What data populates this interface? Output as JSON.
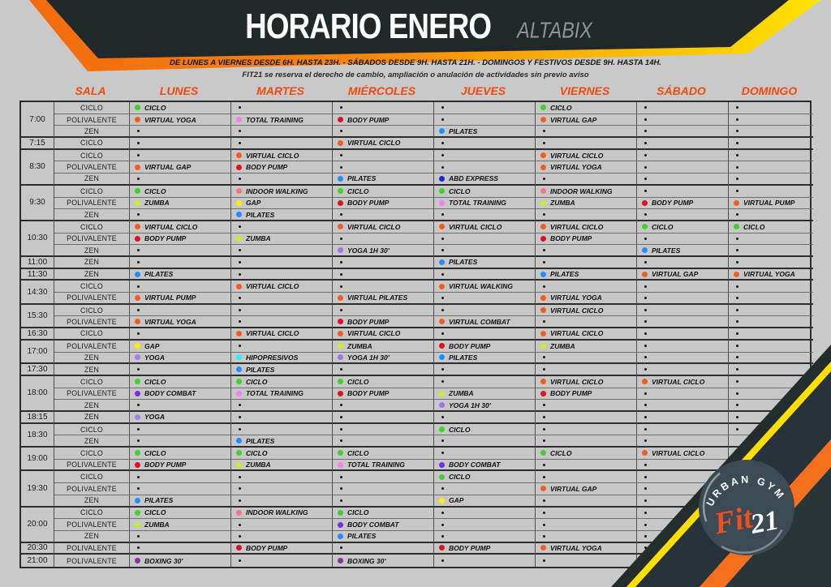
{
  "banner": {
    "title": "HORARIO ENERO",
    "location": "ALTABIX"
  },
  "info": {
    "line1": "DE LUNES A VIERNES DESDE 6H. HASTA 23H. - SÁBADOS DESDE 9H. HASTA 21H. - DOMINGOS Y FESTIVOS DESDE 9H. HASTA 14H.",
    "line2": "FIT21 se reserva el derecho de cambio, ampliación o anulación de actividades sin previo aviso"
  },
  "columns": {
    "room_header": "SALA",
    "days": [
      "LUNES",
      "MARTES",
      "MIÉRCOLES",
      "JUEVES",
      "VIERNES",
      "SÁBADO",
      "DOMINGO"
    ]
  },
  "activity_colors": {
    "CICLO": "#3ed22b",
    "VIRTUAL CICLO": "#f75b1d",
    "VIRTUAL YOGA": "#f75b1d",
    "VIRTUAL GAP": "#f75b1d",
    "VIRTUAL PUMP": "#f75b1d",
    "VIRTUAL PILATES": "#f75b1d",
    "VIRTUAL WALKING": "#f75b1d",
    "VIRTUAL COMBAT": "#f75b1d",
    "TOTAL TRAINING": "#fa7df0",
    "BODY PUMP": "#e0101f",
    "PILATES": "#1e8fff",
    "ABD EXPRESS": "#2522e0",
    "INDOOR WALKING": "#fb7287",
    "ZUMBA": "#c3ef2d",
    "GAP": "#ffec00",
    "YOGA 1H 30'": "#a173e6",
    "YOGA": "#a77fe8",
    "HIPOPRESIVOS": "#2ef0f0",
    "BODY COMBAT": "#7130e0",
    "BOXING 30'": "#8d2f9e"
  },
  "schedule": [
    {
      "time": "7:00",
      "rows": [
        {
          "room": "CICLO",
          "cells": [
            "CICLO",
            "",
            "",
            "",
            "CICLO",
            "",
            ""
          ]
        },
        {
          "room": "POLIVALENTE",
          "cells": [
            "VIRTUAL YOGA",
            "TOTAL TRAINING",
            "BODY PUMP",
            "",
            "VIRTUAL GAP",
            "",
            ""
          ]
        },
        {
          "room": "ZEN",
          "cells": [
            "",
            "",
            "",
            "PILATES",
            "",
            "",
            ""
          ]
        }
      ]
    },
    {
      "time": "7:15",
      "rows": [
        {
          "room": "CICLO",
          "cells": [
            "",
            "",
            "VIRTUAL CICLO",
            "",
            "",
            "",
            ""
          ]
        }
      ]
    },
    {
      "time": "8:30",
      "rows": [
        {
          "room": "CICLO",
          "cells": [
            "",
            "VIRTUAL CICLO",
            "",
            "",
            "VIRTUAL CICLO",
            "",
            ""
          ]
        },
        {
          "room": "POLIVALENTE",
          "cells": [
            "VIRTUAL GAP",
            "BODY PUMP",
            "",
            "",
            "VIRTUAL YOGA",
            "",
            ""
          ]
        },
        {
          "room": "ZEN",
          "cells": [
            "",
            "",
            "PILATES",
            "ABD EXPRESS",
            "",
            "",
            ""
          ]
        }
      ]
    },
    {
      "time": "9:30",
      "rows": [
        {
          "room": "CICLO",
          "cells": [
            "CICLO",
            "INDOOR WALKING",
            "CICLO",
            "CICLO",
            "INDOOR WALKING",
            "",
            ""
          ]
        },
        {
          "room": "POLIVALENTE",
          "cells": [
            "ZUMBA",
            "GAP",
            "BODY PUMP",
            "TOTAL TRAINING",
            "ZUMBA",
            "BODY PUMP",
            "VIRTUAL PUMP"
          ]
        },
        {
          "room": "ZEN",
          "cells": [
            "",
            "PILATES",
            "",
            "",
            "",
            "",
            ""
          ]
        }
      ]
    },
    {
      "time": "10:30",
      "rows": [
        {
          "room": "CICLO",
          "cells": [
            "VIRTUAL CICLO",
            "",
            "VIRTUAL CICLO",
            "VIRTUAL CICLO",
            "VIRTUAL CICLO",
            "CICLO",
            "CICLO"
          ]
        },
        {
          "room": "POLIVALENTE",
          "cells": [
            "BODY PUMP",
            "ZUMBA",
            "",
            "",
            "BODY PUMP",
            "",
            ""
          ]
        },
        {
          "room": "ZEN",
          "cells": [
            "",
            "",
            "YOGA 1H 30'",
            "",
            "",
            "PILATES",
            ""
          ]
        }
      ]
    },
    {
      "time": "11:00",
      "rows": [
        {
          "room": "ZEN",
          "cells": [
            "",
            "",
            "",
            "PILATES",
            "",
            "",
            ""
          ]
        }
      ]
    },
    {
      "time": "11:30",
      "rows": [
        {
          "room": "ZEN",
          "cells": [
            "PILATES",
            "",
            "",
            "",
            "PILATES",
            "VIRTUAL GAP",
            "VIRTUAL YOGA"
          ]
        }
      ]
    },
    {
      "time": "14:30",
      "rows": [
        {
          "room": "CICLO",
          "cells": [
            "",
            "VIRTUAL CICLO",
            "",
            "VIRTUAL WALKING",
            "",
            "",
            ""
          ]
        },
        {
          "room": "POLIVALENTE",
          "cells": [
            "VIRTUAL PUMP",
            "",
            "VIRTUAL PILATES",
            "",
            "VIRTUAL YOGA",
            "",
            ""
          ]
        }
      ]
    },
    {
      "time": "15:30",
      "rows": [
        {
          "room": "CICLO",
          "cells": [
            "",
            "",
            "",
            "",
            "VIRTUAL CICLO",
            "",
            ""
          ]
        },
        {
          "room": "POLIVALENTE",
          "cells": [
            "VIRTUAL YOGA",
            "",
            "BODY PUMP",
            "VIRTUAL COMBAT",
            "",
            "",
            ""
          ]
        }
      ]
    },
    {
      "time": "16:30",
      "rows": [
        {
          "room": "CICLO",
          "cells": [
            "",
            "VIRTUAL CICLO",
            "VIRTUAL CICLO",
            "",
            "VIRTUAL CICLO",
            "",
            ""
          ]
        }
      ]
    },
    {
      "time": "17:00",
      "rows": [
        {
          "room": "POLIVALENTE",
          "cells": [
            "GAP",
            "",
            "ZUMBA",
            "BODY PUMP",
            "ZUMBA",
            "",
            ""
          ]
        },
        {
          "room": "ZEN",
          "cells": [
            "YOGA",
            "HIPOPRESIVOS",
            "YOGA 1H 30'",
            "PILATES",
            "",
            "",
            ""
          ]
        }
      ]
    },
    {
      "time": "17:30",
      "rows": [
        {
          "room": "ZEN",
          "cells": [
            "",
            "PILATES",
            "",
            "",
            "",
            "",
            ""
          ]
        }
      ]
    },
    {
      "time": "18:00",
      "rows": [
        {
          "room": "CICLO",
          "cells": [
            "CICLO",
            "CICLO",
            "CICLO",
            "",
            "VIRTUAL CICLO",
            "VIRTUAL CICLO",
            ""
          ]
        },
        {
          "room": "POLIVALENTE",
          "cells": [
            "BODY COMBAT",
            "TOTAL TRAINING",
            "BODY PUMP",
            "ZUMBA",
            "BODY PUMP",
            "",
            ""
          ]
        },
        {
          "room": "ZEN",
          "cells": [
            "",
            "",
            "",
            "YOGA 1H 30'",
            "",
            "",
            ""
          ]
        }
      ]
    },
    {
      "time": "18:15",
      "rows": [
        {
          "room": "ZEN",
          "cells": [
            "YOGA",
            "",
            "",
            "",
            "",
            "",
            ""
          ]
        }
      ]
    },
    {
      "time": "18:30",
      "rows": [
        {
          "room": "CICLO",
          "cells": [
            "",
            "",
            "",
            "CICLO",
            "",
            "",
            ""
          ]
        },
        {
          "room": "ZEN",
          "cells": [
            "",
            "PILATES",
            "",
            "",
            "",
            "",
            null
          ]
        }
      ]
    },
    {
      "time": "19:00",
      "rows": [
        {
          "room": "CICLO",
          "cells": [
            "CICLO",
            "CICLO",
            "CICLO",
            "",
            "CICLO",
            "VIRTUAL CICLO",
            ""
          ]
        },
        {
          "room": "POLIVALENTE",
          "cells": [
            "BODY PUMP",
            "ZUMBA",
            "TOTAL TRAINING",
            "BODY COMBAT",
            "",
            "",
            null
          ]
        }
      ]
    },
    {
      "time": "19:30",
      "rows": [
        {
          "room": "CICLO",
          "cells": [
            "",
            "",
            "",
            "CICLO",
            "",
            "",
            null
          ]
        },
        {
          "room": "POLIVALENTE",
          "cells": [
            "",
            "",
            "",
            "",
            "VIRTUAL GAP",
            "",
            null
          ]
        },
        {
          "room": "ZEN",
          "cells": [
            "PILATES",
            "",
            "",
            "GAP",
            "",
            "",
            null
          ]
        }
      ]
    },
    {
      "time": "20:00",
      "rows": [
        {
          "room": "CICLO",
          "cells": [
            "CICLO",
            "INDOOR WALKING",
            "CICLO",
            "",
            "",
            "",
            null
          ]
        },
        {
          "room": "POLIVALENTE",
          "cells": [
            "ZUMBA",
            "",
            "BODY COMBAT",
            "",
            "",
            "",
            null
          ]
        },
        {
          "room": "ZEN",
          "cells": [
            "",
            "",
            "PILATES",
            "",
            "",
            "",
            null
          ]
        }
      ]
    },
    {
      "time": "20:30",
      "rows": [
        {
          "room": "POLIVALENTE",
          "cells": [
            "",
            "BODY PUMP",
            "",
            "BODY PUMP",
            "VIRTUAL YOGA",
            "",
            null
          ]
        }
      ]
    },
    {
      "time": "21:00",
      "rows": [
        {
          "room": "POLIVALENTE",
          "cells": [
            "BOXING 30'",
            "",
            "BOXING 30'",
            "",
            "",
            "",
            null
          ]
        }
      ]
    }
  ],
  "logo": {
    "top": "URBAN GYM",
    "brand": "Fit",
    "brand_number": "21"
  },
  "theme": {
    "accent_orange": "#f1680e",
    "accent_yellow": "#ffe400",
    "banner_black": "#212829",
    "header_orange": "#f3490e",
    "background": "#c9c9c9"
  }
}
